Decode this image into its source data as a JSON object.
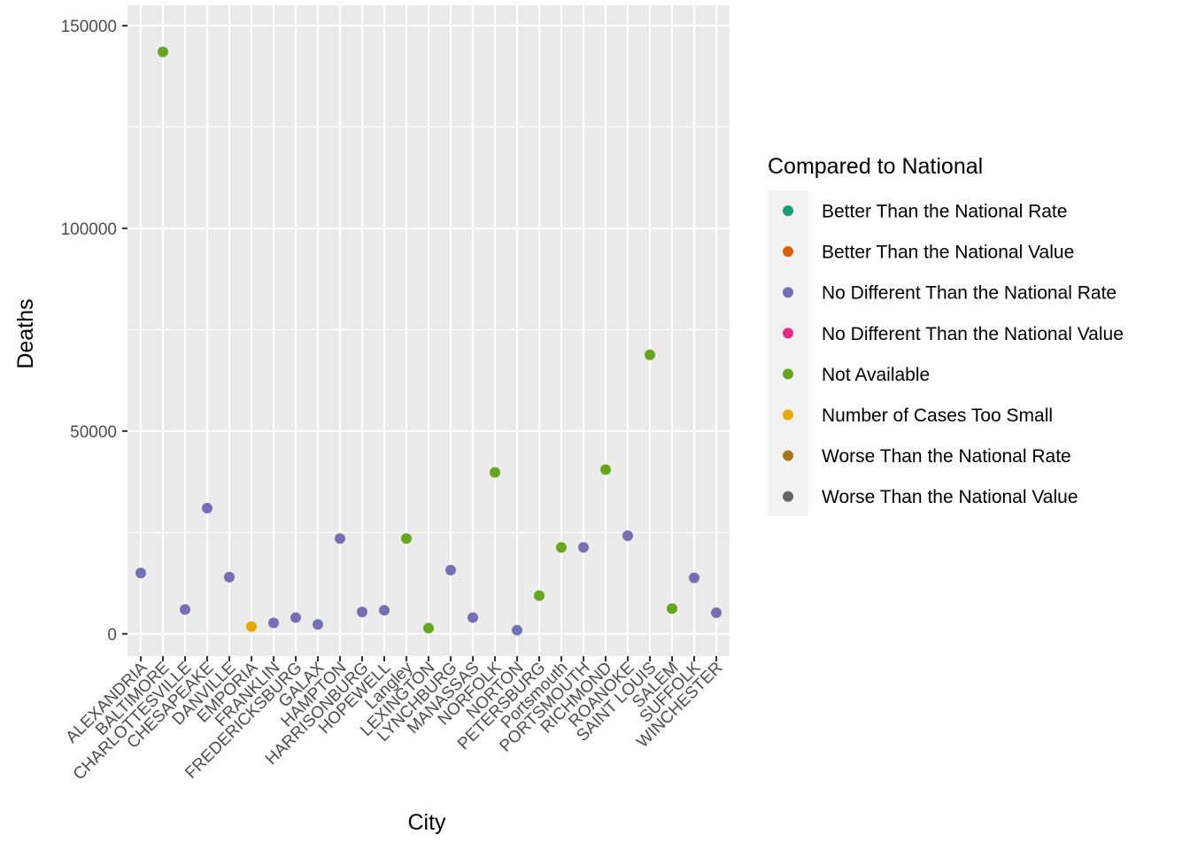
{
  "chart_data": {
    "type": "scatter",
    "title": "",
    "xlabel": "City",
    "ylabel": "Deaths",
    "ylim": [
      -5500,
      155000
    ],
    "yticks": [
      0,
      50000,
      100000,
      150000
    ],
    "ytick_labels": [
      "0",
      "50000",
      "100000",
      "150000"
    ],
    "grid": true,
    "legend_position": "right",
    "legend_title": "Compared to National",
    "categories": [
      "ALEXANDRIA",
      "BALTIMORE",
      "CHARLOTTESVILLE",
      "CHESAPEAKE",
      "DANVILLE",
      "EMPORIA",
      "FRANKLIN",
      "FREDERICKSBURG",
      "GALAX",
      "HAMPTON",
      "HARRISONBURG",
      "HOPEWELL",
      "Langley",
      "LEXINGTON",
      "LYNCHBURG",
      "MANASSAS",
      "NORFOLK",
      "NORTON",
      "PETERSBURG",
      "Portsmouth",
      "PORTSMOUTH",
      "RICHMOND",
      "ROANOKE",
      "SAINT LOUIS",
      "SALEM",
      "SUFFOLK",
      "WINCHESTER"
    ],
    "legend": [
      {
        "name": "Better Than the National Rate",
        "color": "#1B9E77"
      },
      {
        "name": "Better Than the National Value",
        "color": "#D95F02"
      },
      {
        "name": "No Different Than the National Rate",
        "color": "#7570B3"
      },
      {
        "name": "No Different Than the National Value",
        "color": "#E7298A"
      },
      {
        "name": "Not Available",
        "color": "#66A61E"
      },
      {
        "name": "Number of Cases Too Small",
        "color": "#E6AB02"
      },
      {
        "name": "Worse Than the National Rate",
        "color": "#A6761D"
      },
      {
        "name": "Worse Than the National Value",
        "color": "#666666"
      }
    ],
    "points": [
      {
        "x": "ALEXANDRIA",
        "y": 15000,
        "group": "No Different Than the National Rate"
      },
      {
        "x": "BALTIMORE",
        "y": 143500,
        "group": "Not Available"
      },
      {
        "x": "CHARLOTTESVILLE",
        "y": 6000,
        "group": "No Different Than the National Rate"
      },
      {
        "x": "CHESAPEAKE",
        "y": 31000,
        "group": "No Different Than the National Rate"
      },
      {
        "x": "DANVILLE",
        "y": 14000,
        "group": "No Different Than the National Rate"
      },
      {
        "x": "EMPORIA",
        "y": 1800,
        "group": "Number of Cases Too Small"
      },
      {
        "x": "FRANKLIN",
        "y": 2700,
        "group": "No Different Than the National Rate"
      },
      {
        "x": "FREDERICKSBURG",
        "y": 4000,
        "group": "No Different Than the National Rate"
      },
      {
        "x": "GALAX",
        "y": 2300,
        "group": "No Different Than the National Rate"
      },
      {
        "x": "HAMPTON",
        "y": 23500,
        "group": "No Different Than the National Rate"
      },
      {
        "x": "HARRISONBURG",
        "y": 5400,
        "group": "No Different Than the National Rate"
      },
      {
        "x": "HOPEWELL",
        "y": 5800,
        "group": "No Different Than the National Rate"
      },
      {
        "x": "Langley",
        "y": 23500,
        "group": "Not Available"
      },
      {
        "x": "LEXINGTON",
        "y": 1400,
        "group": "Not Available"
      },
      {
        "x": "LYNCHBURG",
        "y": 15700,
        "group": "No Different Than the National Rate"
      },
      {
        "x": "MANASSAS",
        "y": 4000,
        "group": "No Different Than the National Rate"
      },
      {
        "x": "NORFOLK",
        "y": 39800,
        "group": "Not Available"
      },
      {
        "x": "NORTON",
        "y": 900,
        "group": "No Different Than the National Rate"
      },
      {
        "x": "PETERSBURG",
        "y": 9400,
        "group": "Not Available"
      },
      {
        "x": "Portsmouth",
        "y": 21300,
        "group": "Not Available"
      },
      {
        "x": "PORTSMOUTH",
        "y": 21300,
        "group": "No Different Than the National Rate"
      },
      {
        "x": "RICHMOND",
        "y": 40500,
        "group": "Not Available"
      },
      {
        "x": "ROANOKE",
        "y": 24200,
        "group": "No Different Than the National Rate"
      },
      {
        "x": "SAINT LOUIS",
        "y": 68800,
        "group": "Not Available"
      },
      {
        "x": "SALEM",
        "y": 6200,
        "group": "Not Available"
      },
      {
        "x": "SUFFOLK",
        "y": 13800,
        "group": "No Different Than the National Rate"
      },
      {
        "x": "WINCHESTER",
        "y": 5200,
        "group": "No Different Than the National Rate"
      }
    ]
  }
}
